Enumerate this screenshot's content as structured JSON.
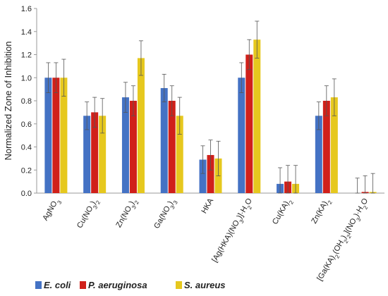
{
  "chart_data": {
    "type": "bar",
    "ylabel": "Normalized Zone of Inhibition",
    "ylim": [
      0,
      1.6
    ],
    "yticks": [
      "0.0",
      "0.2",
      "0.4",
      "0.6",
      "0.8",
      "1.0",
      "1.2",
      "1.4",
      "1.6"
    ],
    "grid": false,
    "legend_position": "bottom",
    "categories": [
      {
        "html": "AgNO<tspan baseline-shift=\"sub\" font-size=\"8\">3</tspan>"
      },
      {
        "html": "Cu(NO<tspan baseline-shift=\"sub\" font-size=\"8\">3</tspan>)<tspan baseline-shift=\"sub\" font-size=\"8\">2</tspan>"
      },
      {
        "html": "Zn(NO<tspan baseline-shift=\"sub\" font-size=\"8\">3</tspan>)<tspan baseline-shift=\"sub\" font-size=\"8\">2</tspan>"
      },
      {
        "html": "Ga(NO<tspan baseline-shift=\"sub\" font-size=\"8\">3</tspan>)<tspan baseline-shift=\"sub\" font-size=\"8\">3</tspan>"
      },
      {
        "html": "HKA"
      },
      {
        "html": "[Ag(HKA)(NO<tspan baseline-shift=\"sub\" font-size=\"8\">3</tspan>)]·H<tspan baseline-shift=\"sub\" font-size=\"8\">2</tspan>O"
      },
      {
        "html": "Cu(KA)<tspan baseline-shift=\"sub\" font-size=\"8\">2</tspan>"
      },
      {
        "html": "Zn(KA)<tspan baseline-shift=\"sub\" font-size=\"8\">2</tspan>"
      },
      {
        "html": "[Ga(KA)<tspan baseline-shift=\"sub\" font-size=\"8\">2</tspan>(OH<tspan baseline-shift=\"sub\" font-size=\"8\">2</tspan>)<tspan baseline-shift=\"sub\" font-size=\"8\">2</tspan>](NO<tspan baseline-shift=\"sub\" font-size=\"8\">3</tspan>)·H<tspan baseline-shift=\"sub\" font-size=\"8\">2</tspan>O"
      }
    ],
    "category_text": [
      "AgNO3",
      "Cu(NO3)2",
      "Zn(NO3)2",
      "Ga(NO3)3",
      "HKA",
      "[Ag(HKA)(NO3)]·H2O",
      "Cu(KA)2",
      "Zn(KA)2",
      "[Ga(KA)2(OH2)2](NO3)·H2O"
    ],
    "series": [
      {
        "name": "E. coli",
        "color": "#4472C4",
        "values": [
          1.0,
          0.67,
          0.83,
          0.91,
          0.29,
          1.0,
          0.08,
          0.67,
          0.0
        ],
        "errors": [
          0.13,
          0.12,
          0.13,
          0.12,
          0.12,
          0.13,
          0.14,
          0.12,
          0.13
        ]
      },
      {
        "name": "P. aeruginosa",
        "color": "#D0201A",
        "values": [
          1.0,
          0.7,
          0.8,
          0.8,
          0.33,
          1.2,
          0.1,
          0.8,
          0.01
        ],
        "errors": [
          0.13,
          0.13,
          0.13,
          0.13,
          0.13,
          0.13,
          0.14,
          0.13,
          0.14
        ]
      },
      {
        "name": "S. aureus",
        "color": "#E6C81E",
        "values": [
          1.0,
          0.67,
          1.17,
          0.67,
          0.3,
          1.33,
          0.08,
          0.83,
          0.01
        ],
        "errors": [
          0.16,
          0.15,
          0.15,
          0.16,
          0.15,
          0.16,
          0.16,
          0.16,
          0.16
        ]
      }
    ]
  }
}
